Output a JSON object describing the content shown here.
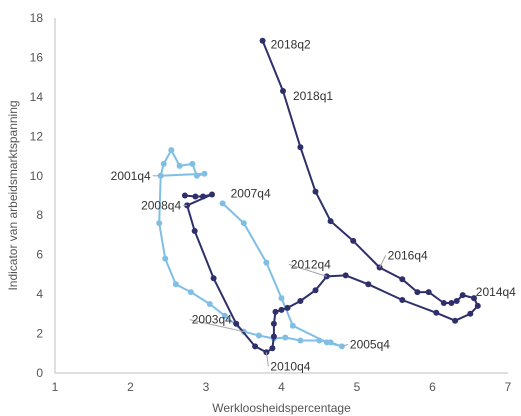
{
  "chart_data": {
    "type": "line",
    "title": "",
    "xlabel": "Werkloosheidspercentage",
    "ylabel": "Indicator van arbeidsmarktspanning",
    "xlim": [
      1,
      7
    ],
    "ylim": [
      0,
      18
    ],
    "xticks": [
      1,
      2,
      3,
      4,
      5,
      6,
      7
    ],
    "yticks": [
      0,
      2,
      4,
      6,
      8,
      10,
      12,
      14,
      16,
      18
    ],
    "grid": false,
    "legend": "none",
    "series": [
      {
        "color": "#7fbfe6",
        "points": [
          [
            2.4,
            10.0
          ],
          [
            2.44,
            10.6
          ],
          [
            2.54,
            11.3
          ],
          [
            2.65,
            10.5
          ],
          [
            2.82,
            10.6
          ],
          [
            2.88,
            10.0
          ],
          [
            2.98,
            10.1
          ],
          [
            2.4,
            10.0
          ],
          [
            2.38,
            7.6
          ],
          [
            2.46,
            5.8
          ],
          [
            2.6,
            4.5
          ],
          [
            2.8,
            4.1
          ],
          [
            3.05,
            3.5
          ],
          [
            3.25,
            2.9
          ],
          [
            3.5,
            2.1
          ],
          [
            3.7,
            1.9
          ],
          [
            3.9,
            1.75
          ],
          [
            4.05,
            1.8
          ],
          [
            4.25,
            1.65
          ],
          [
            4.5,
            1.65
          ],
          [
            4.65,
            1.55
          ],
          [
            4.8,
            1.35
          ],
          [
            4.6,
            1.55
          ],
          [
            4.15,
            2.4
          ],
          [
            4.0,
            3.8
          ],
          [
            3.8,
            5.6
          ],
          [
            3.5,
            7.6
          ],
          [
            3.22,
            8.6
          ]
        ]
      },
      {
        "color": "#2e2f6b",
        "points": [
          [
            2.72,
            9.0
          ],
          [
            2.86,
            8.95
          ],
          [
            2.96,
            8.95
          ],
          [
            3.08,
            9.05
          ],
          [
            2.75,
            8.5
          ],
          [
            2.85,
            7.2
          ],
          [
            3.1,
            4.8
          ],
          [
            3.4,
            2.5
          ],
          [
            3.65,
            1.35
          ],
          [
            3.8,
            1.05
          ],
          [
            3.88,
            1.25
          ],
          [
            3.9,
            1.85
          ],
          [
            3.9,
            2.5
          ],
          [
            3.92,
            3.1
          ],
          [
            4.0,
            3.2
          ],
          [
            4.08,
            3.3
          ],
          [
            4.25,
            3.65
          ],
          [
            4.45,
            4.2
          ],
          [
            4.6,
            4.9
          ],
          [
            4.85,
            4.95
          ],
          [
            5.15,
            4.5
          ],
          [
            5.6,
            3.7
          ],
          [
            6.05,
            3.05
          ],
          [
            6.3,
            2.65
          ],
          [
            6.5,
            3.0
          ],
          [
            6.6,
            3.4
          ],
          [
            6.55,
            3.8
          ],
          [
            6.4,
            3.95
          ],
          [
            6.32,
            3.65
          ],
          [
            6.25,
            3.55
          ],
          [
            6.15,
            3.55
          ],
          [
            5.95,
            4.1
          ],
          [
            5.8,
            4.1
          ],
          [
            5.6,
            4.75
          ],
          [
            5.3,
            5.35
          ],
          [
            4.95,
            6.7
          ],
          [
            4.65,
            7.7
          ],
          [
            4.45,
            9.2
          ],
          [
            4.25,
            11.45
          ],
          [
            4.02,
            14.3
          ],
          [
            3.75,
            16.85
          ]
        ]
      }
    ],
    "annotations": [
      {
        "text": "2018q2",
        "x": 3.75,
        "y": 16.85
      },
      {
        "text": "2018q1",
        "x": 4.02,
        "y": 14.3
      },
      {
        "text": "2001q4",
        "x": 2.4,
        "y": 10.0
      },
      {
        "text": "2008q4",
        "x": 2.75,
        "y": 8.5
      },
      {
        "text": "2007q4",
        "x": 3.22,
        "y": 8.6
      },
      {
        "text": "2016q4",
        "x": 5.3,
        "y": 5.35
      },
      {
        "text": "2012q4",
        "x": 4.6,
        "y": 4.9
      },
      {
        "text": "2014q4",
        "x": 6.6,
        "y": 3.4
      },
      {
        "text": "2003q4",
        "x": 3.5,
        "y": 2.1
      },
      {
        "text": "2005q4",
        "x": 4.8,
        "y": 1.35
      },
      {
        "text": "2010q4",
        "x": 3.8,
        "y": 1.05
      }
    ]
  }
}
